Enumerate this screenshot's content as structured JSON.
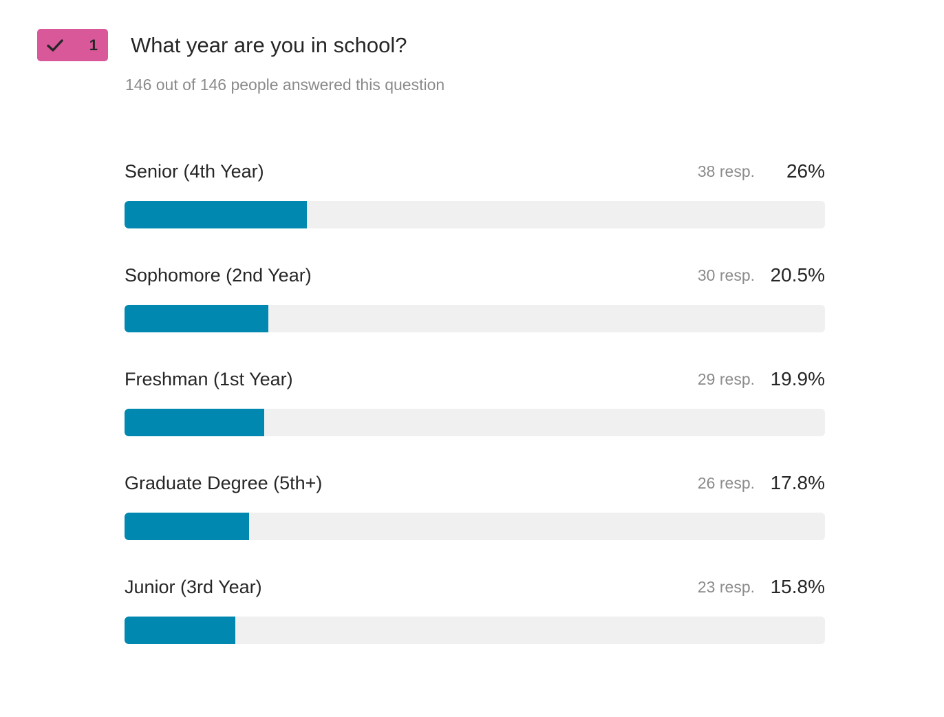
{
  "question": {
    "number": "1",
    "title": "What year are you in school?",
    "answered_text": "146 out of 146 people answered this question",
    "badge_color": "#d9589a",
    "badge_icon": "check-icon"
  },
  "bar_color": "#0088b0",
  "track_color": "#f0f0f0",
  "chart_data": {
    "type": "bar",
    "orientation": "horizontal",
    "title": "What year are you in school?",
    "total_responses": 146,
    "categories": [
      "Senior (4th Year)",
      "Sophomore (2nd Year)",
      "Freshman (1st Year)",
      "Graduate Degree (5th+)",
      "Junior (3rd Year)"
    ],
    "responses": [
      38,
      30,
      29,
      26,
      23
    ],
    "percentages": [
      26,
      20.5,
      19.9,
      17.8,
      15.8
    ],
    "xlim": [
      0,
      100
    ],
    "rows": [
      {
        "label": "Senior (4th Year)",
        "count_text": "38 resp.",
        "pct_text": "26%",
        "value": 26
      },
      {
        "label": "Sophomore (2nd Year)",
        "count_text": "30 resp.",
        "pct_text": "20.5%",
        "value": 20.5
      },
      {
        "label": "Freshman (1st Year)",
        "count_text": "29 resp.",
        "pct_text": "19.9%",
        "value": 19.9
      },
      {
        "label": "Graduate Degree (5th+)",
        "count_text": "26 resp.",
        "pct_text": "17.8%",
        "value": 17.8
      },
      {
        "label": "Junior (3rd Year)",
        "count_text": "23 resp.",
        "pct_text": "15.8%",
        "value": 15.8
      }
    ]
  }
}
